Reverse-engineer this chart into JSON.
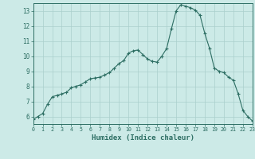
{
  "xlabel": "Humidex (Indice chaleur)",
  "bg_color": "#cceae7",
  "grid_color": "#aacfcc",
  "line_color": "#2d6e63",
  "marker_color": "#2d6e63",
  "x_values": [
    0.0,
    0.5,
    1.0,
    1.5,
    2.0,
    2.5,
    3.0,
    3.5,
    4.0,
    4.5,
    5.0,
    5.5,
    6.0,
    6.5,
    7.0,
    7.5,
    8.0,
    8.5,
    9.0,
    9.5,
    10.0,
    10.5,
    11.0,
    11.5,
    12.0,
    12.5,
    13.0,
    13.5,
    14.0,
    14.5,
    15.0,
    15.5,
    16.0,
    16.5,
    17.0,
    17.5,
    18.0,
    18.5,
    19.0,
    19.5,
    20.0,
    20.5,
    21.0,
    21.5,
    22.0,
    22.5,
    23.0
  ],
  "y_values": [
    5.8,
    6.0,
    6.2,
    6.8,
    7.3,
    7.4,
    7.5,
    7.6,
    7.9,
    8.0,
    8.1,
    8.3,
    8.5,
    8.55,
    8.6,
    8.75,
    8.9,
    9.2,
    9.5,
    9.7,
    10.2,
    10.35,
    10.4,
    10.1,
    9.8,
    9.65,
    9.6,
    10.0,
    10.5,
    11.8,
    13.0,
    13.4,
    13.3,
    13.2,
    13.05,
    12.7,
    11.5,
    10.5,
    9.2,
    9.0,
    8.9,
    8.6,
    8.4,
    7.5,
    6.4,
    6.0,
    5.7
  ],
  "xlim": [
    0,
    23
  ],
  "ylim": [
    5.5,
    13.5
  ],
  "yticks": [
    6,
    7,
    8,
    9,
    10,
    11,
    12,
    13
  ],
  "xticks": [
    0,
    1,
    2,
    3,
    4,
    5,
    6,
    7,
    8,
    9,
    10,
    11,
    12,
    13,
    14,
    15,
    16,
    17,
    18,
    19,
    20,
    21,
    22,
    23
  ],
  "tick_color": "#2d6e63",
  "axis_color": "#2d6e63",
  "xlabel_color": "#2d6e63"
}
